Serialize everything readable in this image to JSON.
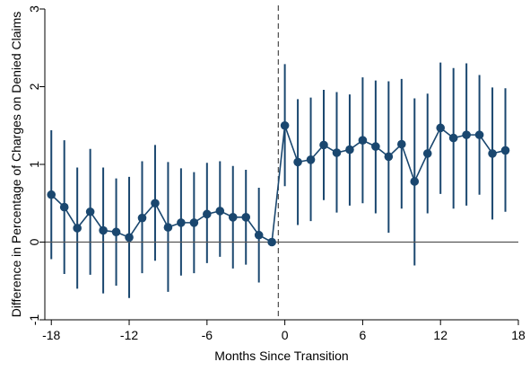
{
  "chart_data": {
    "type": "line",
    "title": "",
    "xlabel": "Months Since Transition",
    "ylabel": "Difference in Percentage of Charges on Denied Claims",
    "xlim": [
      -18.5,
      18
    ],
    "ylim": [
      -1,
      3
    ],
    "x_ticks": [
      -18,
      -12,
      -6,
      0,
      6,
      12,
      18
    ],
    "y_ticks": [
      -1,
      0,
      1,
      2,
      3
    ],
    "x_tick_labels": [
      "-18",
      "-12",
      "-6",
      "0",
      "6",
      "12",
      "18"
    ],
    "y_tick_labels": [
      "-1",
      "0",
      "1",
      "2",
      "3"
    ],
    "reference_lines": {
      "vertical_dashed_x": -0.5,
      "horizontal_y": 0
    },
    "grid": false,
    "legend": "none",
    "colors": {
      "series": "#1a476f",
      "reference": "#555555",
      "axis": "#000000"
    },
    "series": [
      {
        "x": [
          -18,
          -17,
          -16,
          -15,
          -14,
          -13,
          -12,
          -11,
          -10,
          -9,
          -8,
          -7,
          -6,
          -5,
          -4,
          -3,
          -2,
          -1,
          0,
          1,
          2,
          3,
          4,
          5,
          6,
          7,
          8,
          9,
          10,
          11,
          12,
          13,
          14,
          15,
          16,
          17
        ],
        "y": [
          0.61,
          0.45,
          0.18,
          0.39,
          0.15,
          0.13,
          0.06,
          0.31,
          0.5,
          0.19,
          0.25,
          0.25,
          0.36,
          0.4,
          0.32,
          0.32,
          0.09,
          0.0,
          1.5,
          1.03,
          1.06,
          1.25,
          1.15,
          1.19,
          1.31,
          1.23,
          1.1,
          1.26,
          0.78,
          1.14,
          1.47,
          1.34,
          1.38,
          1.38,
          1.14,
          1.18
        ],
        "ci_low": [
          -0.22,
          -0.41,
          -0.6,
          -0.42,
          -0.66,
          -0.56,
          -0.72,
          -0.4,
          -0.24,
          -0.64,
          -0.43,
          -0.4,
          -0.27,
          -0.19,
          -0.34,
          -0.29,
          -0.52,
          0.0,
          0.72,
          0.22,
          0.27,
          0.54,
          0.38,
          0.47,
          0.5,
          0.37,
          0.12,
          0.43,
          -0.3,
          0.37,
          0.62,
          0.43,
          0.47,
          0.61,
          0.29,
          0.39
        ],
        "ci_high": [
          1.44,
          1.31,
          0.96,
          1.2,
          0.96,
          0.82,
          0.84,
          1.04,
          1.25,
          1.03,
          0.95,
          0.9,
          1.02,
          1.04,
          0.98,
          0.93,
          0.7,
          0.0,
          2.29,
          1.84,
          1.86,
          1.96,
          1.93,
          1.9,
          2.12,
          2.08,
          2.07,
          2.1,
          1.85,
          1.91,
          2.31,
          2.24,
          2.3,
          2.15,
          1.99,
          1.98
        ]
      }
    ]
  }
}
